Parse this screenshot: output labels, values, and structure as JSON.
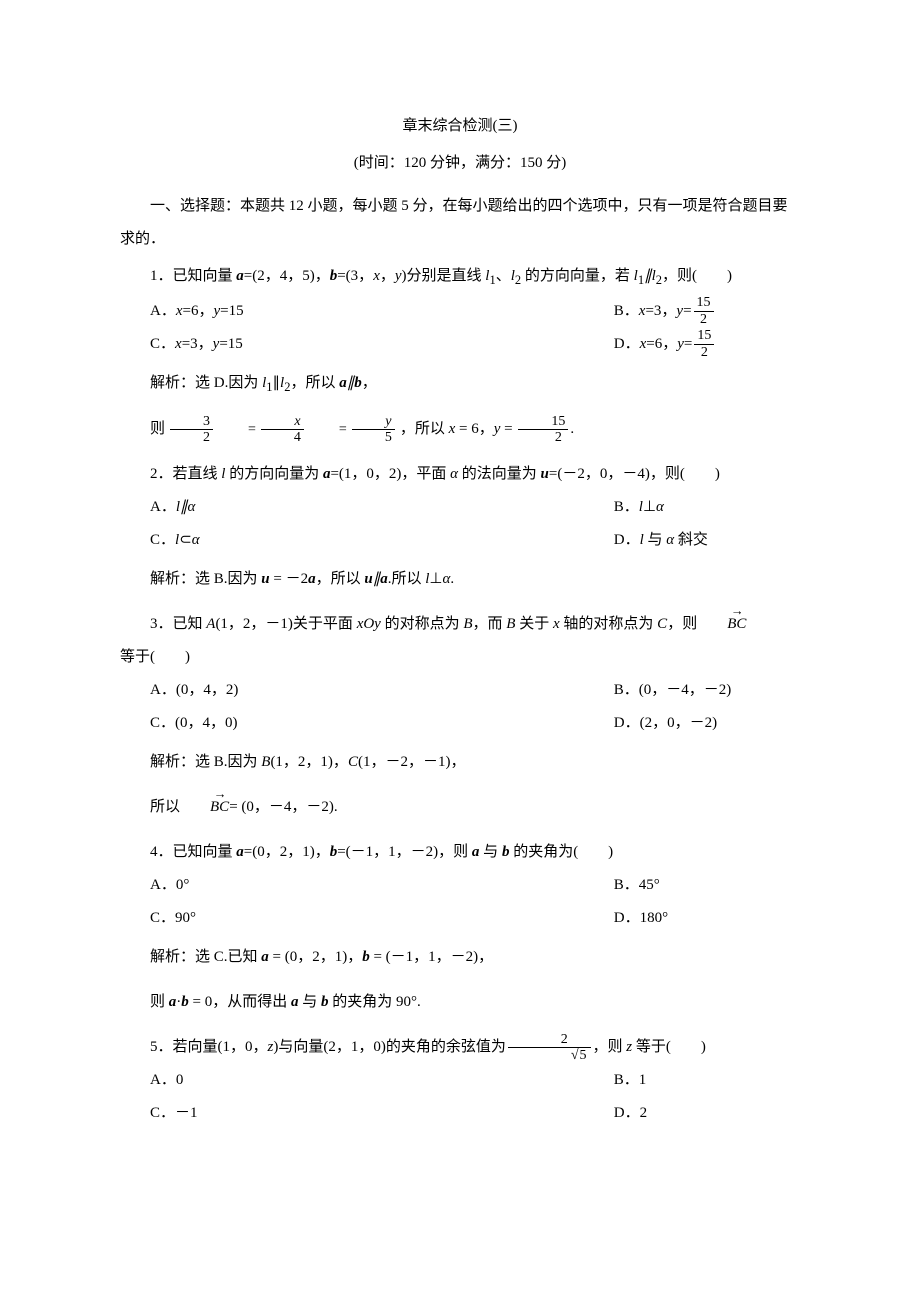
{
  "title": "章末综合检测(三)",
  "subtitle": "(时间：120 分钟，满分：150 分)",
  "section1": "一、选择题：本题共 12 小题，每小题 5 分，在每小题给出的四个选项中，只有一项是符合题目要求的．",
  "q1": {
    "opts": {
      "A": "A．",
      "Aval": "=6，",
      "Aval2": "=15",
      "B": "B．",
      "Bval": "=3，",
      "C": "C．",
      "Cval": "=3，",
      "Cval2": "=15",
      "D": "D．",
      "Dval": "=6，"
    },
    "frac_num": "15",
    "frac_den": "2",
    "sol_a": "解析：选 D.因为 ",
    "sol_b": "∥",
    "sol_c": "，所以 ",
    "sol_d": "∥",
    "sol_e": "，",
    "sol2_a": "则",
    "sol2_b": "，所以 ",
    "sol2_c": " = 6，",
    "sol2_d": " = ",
    "sol2_e": "."
  },
  "q2": {
    "stem_a": "2．若直线 ",
    "stem_b": " 的方向向量为 ",
    "stem_c": "=(1，0，2)，平面 ",
    "stem_d": " 的法向量为 ",
    "stem_e": "=(－2，0，－4)，则(　　)",
    "opts": {
      "A": "A．",
      "Aval": "∥",
      "B": "B．",
      "Bval": "⊥",
      "C": "C．",
      "Cval": "⊂",
      "D": "D．",
      "Dval": " 与 ",
      "Dval2": " 斜交"
    },
    "sol_a": "解析：选 B.因为 ",
    "sol_b": " = －2",
    "sol_c": "，所以 ",
    "sol_d": "∥",
    "sol_e": ".所以 ",
    "sol_f": "⊥",
    "sol_g": "."
  },
  "q3": {
    "stem_a": "3．已知 ",
    "stem_b": "(1，2，－1)关于平面 ",
    "stem_c": " 的对称点为 ",
    "stem_d": "，而 ",
    "stem_e": " 关于 ",
    "stem_f": " 轴的对称点为 ",
    "stem_g": "，则",
    "stem2": "等于(　　)",
    "opts": {
      "A": "A．(0，4，2)",
      "B": "B．(0，－4，－2)",
      "C": "C．(0，4，0)",
      "D": "D．(2，0，－2)"
    },
    "sol_a": "解析：选 B.因为 ",
    "sol_b": "(1，2，1)，",
    "sol_c": "(1，－2，－1)，",
    "sol2_a": "所以",
    "sol2_b": "= (0，－4，－2)."
  },
  "q4": {
    "stem_a": "4．已知向量 ",
    "stem_b": "=(0，2，1)，",
    "stem_c": "=(－1，1，－2)，则 ",
    "stem_d": " 与 ",
    "stem_e": " 的夹角为(　　)",
    "opts": {
      "A": "A．0°",
      "B": "B．45°",
      "C": "C．90°",
      "D": "D．180°"
    },
    "sol_a": "解析：选 C.已知 ",
    "sol_b": " = (0，2，1)，",
    "sol_c": " = (－1，1，－2)，",
    "sol2_a": "则 ",
    "sol2_b": "·",
    "sol2_c": " = 0，从而得出 ",
    "sol2_d": " 与 ",
    "sol2_e": " 的夹角为 90°."
  },
  "q5": {
    "stem_a": "5．若向量(1，0，",
    "stem_b": ")与向量(2，1，0)的夹角的余弦值为",
    "stem_c": "，则 ",
    "stem_d": " 等于(　　)",
    "frac_num": "2",
    "opts": {
      "A": "A．0",
      "B": "B．1",
      "C": "C．－1",
      "D": "D．2"
    }
  },
  "labels": {
    "l1": "l",
    "l1sub": "1",
    "l2": "l",
    "l2sub": "2",
    "a": "a",
    "b": "b",
    "u": "u",
    "x": "x",
    "y": "y",
    "z": "z",
    "l": "l",
    "alpha": "α",
    "A": "A",
    "B": "B",
    "C": "C",
    "BC": "BC",
    "xOy": "xOy",
    "n3": "3",
    "n2": "2",
    "n4": "4",
    "n5": "5",
    "n15": "15",
    "sqrt5": "5"
  }
}
